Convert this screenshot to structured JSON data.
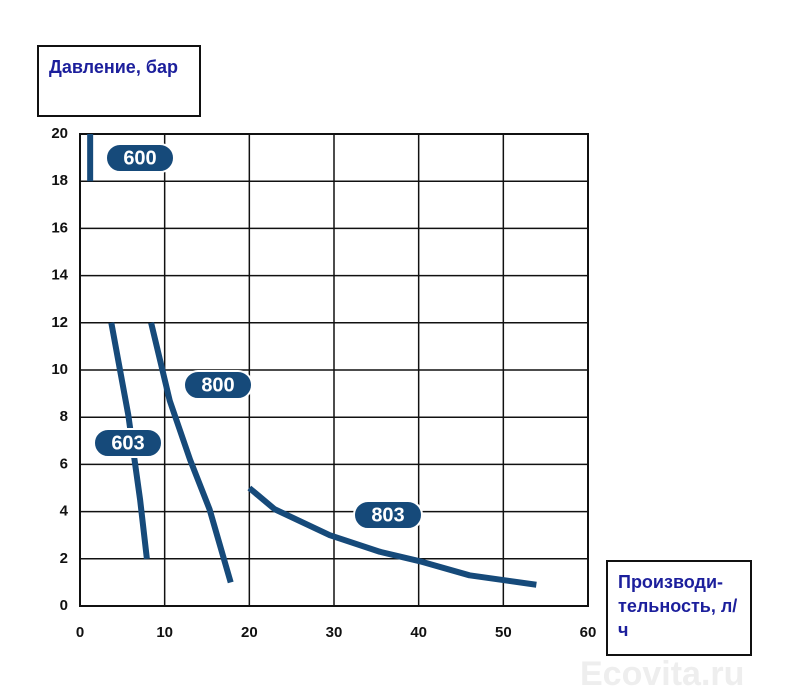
{
  "chart_data": {
    "type": "line",
    "y_label": "Давление, бар",
    "x_label": "Производи-тельность, л/ч",
    "watermark": "Ecovita.ru",
    "xlim": [
      0,
      60
    ],
    "xticks": [
      0,
      10,
      20,
      30,
      40,
      50,
      60
    ],
    "ylim": [
      0,
      20
    ],
    "yticks": [
      0,
      2,
      4,
      6,
      8,
      10,
      12,
      14,
      16,
      18,
      20
    ],
    "grid": true,
    "series": [
      {
        "name": "600",
        "color": "#164a7a",
        "x": [
          1.2,
          1.2
        ],
        "values": [
          18,
          20
        ]
      },
      {
        "name": "603",
        "color": "#164a7a",
        "x": [
          3.7,
          5.7,
          7.1,
          7.9
        ],
        "values": [
          12,
          8.1,
          4.5,
          2
        ]
      },
      {
        "name": "800",
        "color": "#164a7a",
        "x": [
          8.4,
          10.6,
          13,
          15.3,
          17.8
        ],
        "values": [
          12,
          8.7,
          6.2,
          4.1,
          1
        ]
      },
      {
        "name": "803",
        "color": "#164a7a",
        "x": [
          20,
          21,
          23,
          29.5,
          35.4,
          40.1,
          46,
          53.9
        ],
        "values": [
          5,
          4.7,
          4.1,
          3,
          2.3,
          1.9,
          1.3,
          0.9
        ]
      }
    ]
  }
}
